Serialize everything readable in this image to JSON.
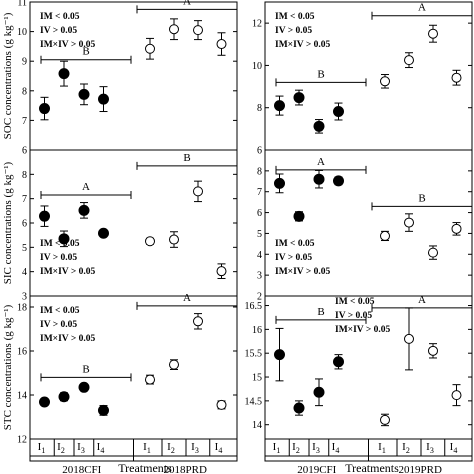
{
  "chart_data": {
    "type": "scatter",
    "xlabel": "Treatments",
    "categories": [
      "I1",
      "I2",
      "I3",
      "I4"
    ],
    "year_groups": [
      {
        "year": "2018",
        "labels": [
          "2018CFI",
          "2018PRD"
        ]
      },
      {
        "year": "2019",
        "labels": [
          "2019CFI",
          "2019PRD"
        ]
      }
    ],
    "legend_markers": {
      "CFI": "filled circle",
      "PRD": "open circle"
    },
    "stats_text": [
      "IM < 0.05",
      "IV > 0.05",
      "IM×IV > 0.05"
    ],
    "panels": [
      {
        "id": "soc-2018",
        "row": 0,
        "col": 0,
        "ylabel": "SOC concentrations (g kg⁻¹)",
        "ylim": [
          6,
          11
        ],
        "yticks": [
          6,
          7,
          8,
          9,
          10,
          11
        ],
        "stats_pos": "top-left",
        "groups": [
          {
            "label": "B",
            "line": 9.05,
            "span": "CFI"
          },
          {
            "label": "A",
            "line": 10.75,
            "span": "PRD"
          }
        ],
        "series": [
          {
            "name": "2018CFI",
            "filled": true,
            "values": [
              7.4,
              8.58,
              7.88,
              7.72
            ],
            "err": [
              0.38,
              0.42,
              0.35,
              0.42
            ]
          },
          {
            "name": "2018PRD",
            "filled": false,
            "values": [
              9.42,
              10.08,
              10.05,
              9.58
            ],
            "err": [
              0.35,
              0.35,
              0.32,
              0.38
            ]
          }
        ]
      },
      {
        "id": "soc-2019",
        "row": 0,
        "col": 1,
        "ylim": [
          6,
          13
        ],
        "yticks": [
          6,
          8,
          10,
          12
        ],
        "stats_pos": "top-left",
        "groups": [
          {
            "label": "B",
            "line": 9.2,
            "span": "CFI"
          },
          {
            "label": "A",
            "line": 12.35,
            "span": "PRD"
          }
        ],
        "series": [
          {
            "name": "2019CFI",
            "filled": true,
            "values": [
              8.1,
              8.48,
              7.12,
              7.82
            ],
            "err": [
              0.45,
              0.35,
              0.32,
              0.4
            ]
          },
          {
            "name": "2019PRD",
            "filled": false,
            "values": [
              9.25,
              10.25,
              11.5,
              9.42
            ],
            "err": [
              0.32,
              0.35,
              0.4,
              0.35
            ]
          }
        ]
      },
      {
        "id": "sic-2018",
        "row": 1,
        "col": 0,
        "ylabel": "SIC concentrations (g kg⁻¹)",
        "ylim": [
          3,
          9
        ],
        "yticks": [
          3,
          4,
          5,
          6,
          7,
          8,
          9
        ],
        "stats_pos": "bottom-left",
        "groups": [
          {
            "label": "A",
            "line": 7.15,
            "span": "CFI"
          },
          {
            "label": "B",
            "line": 8.35,
            "span": "PRD"
          }
        ],
        "series": [
          {
            "name": "2018CFI",
            "filled": true,
            "values": [
              6.28,
              5.35,
              6.52,
              5.58
            ],
            "err": [
              0.42,
              0.32,
              0.32,
              0.12
            ]
          },
          {
            "name": "2018PRD",
            "filled": false,
            "values": [
              5.25,
              5.32,
              7.3,
              4.02
            ],
            "err": [
              0.12,
              0.32,
              0.42,
              0.3
            ]
          }
        ]
      },
      {
        "id": "sic-2019",
        "row": 1,
        "col": 1,
        "ylim": [
          2,
          9
        ],
        "yticks": [
          2,
          3,
          4,
          5,
          6,
          7,
          8,
          9
        ],
        "stats_pos": "bottom-left",
        "groups": [
          {
            "label": "A",
            "line": 8.05,
            "span": "CFI"
          },
          {
            "label": "B",
            "line": 6.3,
            "span": "PRD"
          }
        ],
        "series": [
          {
            "name": "2019CFI",
            "filled": true,
            "values": [
              7.4,
              5.82,
              7.6,
              7.52
            ],
            "err": [
              0.45,
              0.22,
              0.42,
              0.18
            ]
          },
          {
            "name": "2019PRD",
            "filled": false,
            "values": [
              4.88,
              5.52,
              4.08,
              5.22
            ],
            "err": [
              0.22,
              0.42,
              0.32,
              0.3
            ]
          }
        ]
      },
      {
        "id": "stc-2018",
        "row": 2,
        "col": 0,
        "ylabel": "STC concentrations (g kg⁻¹)",
        "ylim": [
          12,
          18.5
        ],
        "yticks": [
          12,
          14,
          16,
          18
        ],
        "stats_pos": "top-left",
        "groups": [
          {
            "label": "B",
            "line": 14.8,
            "span": "CFI"
          },
          {
            "label": "A",
            "line": 18.05,
            "span": "PRD"
          }
        ],
        "series": [
          {
            "name": "2018CFI",
            "filled": true,
            "values": [
              13.68,
              13.92,
              14.35,
              13.3
            ],
            "err": [
              0.15,
              0.18,
              0.15,
              0.22
            ]
          },
          {
            "name": "2018PRD",
            "filled": false,
            "values": [
              14.7,
              15.38,
              17.35,
              13.55
            ],
            "err": [
              0.2,
              0.22,
              0.35,
              0.18
            ]
          }
        ]
      },
      {
        "id": "stc-2019",
        "row": 2,
        "col": 1,
        "ylim": [
          13.7,
          16.7
        ],
        "yticks": [
          14.0,
          14.5,
          15.0,
          15.5,
          16.0,
          16.5
        ],
        "stats_pos": "top-middle",
        "groups": [
          {
            "label": "B",
            "line": 16.2,
            "span": "CFI"
          },
          {
            "label": "A",
            "line": 16.45,
            "span": "PRD"
          }
        ],
        "series": [
          {
            "name": "2019CFI",
            "filled": true,
            "values": [
              15.47,
              14.35,
              14.68,
              15.32
            ],
            "err": [
              0.55,
              0.15,
              0.28,
              0.15
            ]
          },
          {
            "name": "2019PRD",
            "filled": false,
            "values": [
              14.1,
              15.8,
              15.55,
              14.62
            ],
            "err": [
              0.12,
              0.65,
              0.15,
              0.22
            ]
          }
        ]
      }
    ]
  }
}
